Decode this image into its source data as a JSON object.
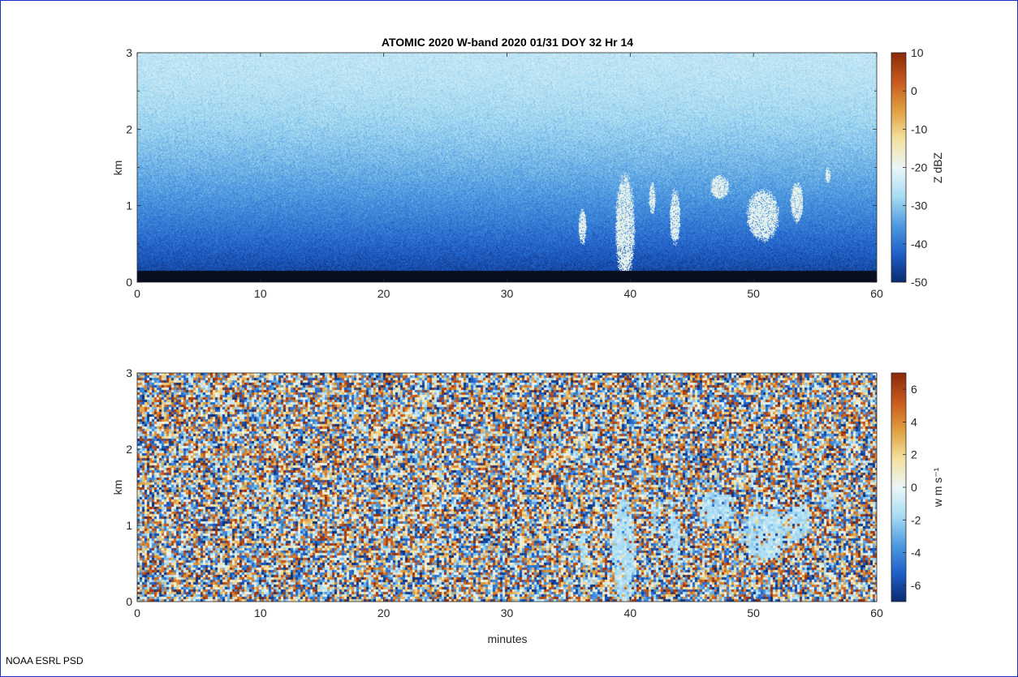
{
  "footer": "NOAA ESRL PSD",
  "chart_data": [
    {
      "type": "heatmap",
      "title": "ATOMIC 2020 W-band 2020 01/31 DOY 32 Hr 14",
      "xlabel": "",
      "ylabel": "km",
      "xlim": [
        0,
        60
      ],
      "ylim": [
        0,
        3
      ],
      "xticks": [
        "0",
        "10",
        "20",
        "30",
        "40",
        "50",
        "60"
      ],
      "yticks": [
        "0",
        "1",
        "2",
        "3"
      ],
      "colorbar": {
        "label": "Z dBZ",
        "range": [
          -50,
          10
        ],
        "ticks": [
          "10",
          "0",
          "-10",
          "-20",
          "-30",
          "-40",
          "-50"
        ]
      },
      "colormap": [
        "#0a2a6e",
        "#1f5fc9",
        "#4f9be0",
        "#a8dcf2",
        "#eaf6f8",
        "#f3e2a0",
        "#e0a040",
        "#c85a1e",
        "#8a2a0a"
      ],
      "features": {
        "background_profile": "reflectivity increases from about -25 dBZ near 3 km to about -45 dBZ near 0.2 km",
        "surface_clutter_below_km": 0.15,
        "cloud_echoes": [
          {
            "t": [
              35.8,
              36.4
            ],
            "z": [
              0.5,
              0.95
            ]
          },
          {
            "t": [
              38.8,
              40.3
            ],
            "z": [
              0.05,
              1.4
            ]
          },
          {
            "t": [
              41.5,
              42.0
            ],
            "z": [
              0.9,
              1.3
            ]
          },
          {
            "t": [
              43.2,
              44.0
            ],
            "z": [
              0.5,
              1.2
            ]
          },
          {
            "t": [
              46.5,
              48.0
            ],
            "z": [
              1.1,
              1.4
            ]
          },
          {
            "t": [
              49.5,
              52.0
            ],
            "z": [
              0.55,
              1.2
            ]
          },
          {
            "t": [
              53.0,
              54.0
            ],
            "z": [
              0.8,
              1.3
            ]
          },
          {
            "t": [
              55.8,
              56.2
            ],
            "z": [
              1.3,
              1.5
            ]
          }
        ]
      }
    },
    {
      "type": "heatmap",
      "title": "",
      "xlabel": "minutes",
      "ylabel": "km",
      "xlim": [
        0,
        60
      ],
      "ylim": [
        0,
        3
      ],
      "xticks": [
        "0",
        "10",
        "20",
        "30",
        "40",
        "50",
        "60"
      ],
      "yticks": [
        "0",
        "1",
        "2",
        "3"
      ],
      "colorbar": {
        "label": "w  m s⁻¹",
        "range": [
          -7,
          7
        ],
        "ticks": [
          "6",
          "4",
          "2",
          "0",
          "-2",
          "-4",
          "-6"
        ]
      },
      "colormap": [
        "#0a2a6e",
        "#1f5fc9",
        "#4f9be0",
        "#a8dcf2",
        "#eaf6f8",
        "#f3e2a0",
        "#e0a040",
        "#c85a1e",
        "#8a2a0a"
      ],
      "features": {
        "background": "random noise over full range",
        "cloud_velocity_ms": -1.5,
        "cloud_echoes": [
          {
            "t": [
              35.8,
              36.4
            ],
            "z": [
              0.5,
              0.95
            ]
          },
          {
            "t": [
              38.5,
              40.3
            ],
            "z": [
              0.0,
              1.45
            ]
          },
          {
            "t": [
              41.5,
              42.0
            ],
            "z": [
              0.9,
              1.3
            ]
          },
          {
            "t": [
              43.0,
              44.0
            ],
            "z": [
              0.5,
              1.2
            ]
          },
          {
            "t": [
              45.5,
              48.5
            ],
            "z": [
              1.05,
              1.45
            ]
          },
          {
            "t": [
              49.0,
              52.5
            ],
            "z": [
              0.55,
              1.25
            ]
          },
          {
            "t": [
              52.5,
              54.5
            ],
            "z": [
              0.8,
              1.35
            ]
          },
          {
            "t": [
              55.5,
              56.5
            ],
            "z": [
              1.2,
              1.5
            ]
          }
        ]
      }
    }
  ]
}
